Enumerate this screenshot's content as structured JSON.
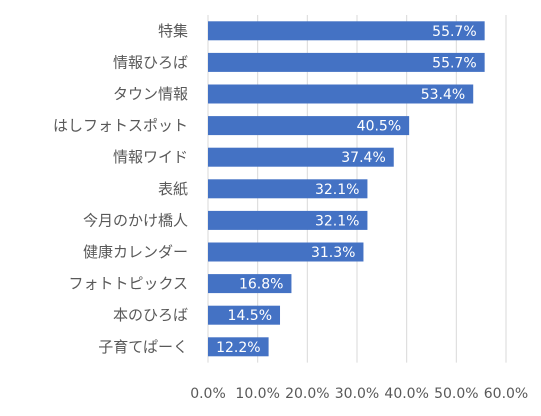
{
  "chart_data": {
    "type": "bar",
    "orientation": "horizontal",
    "title": "",
    "xlabel": "",
    "ylabel": "",
    "categories": [
      "特集",
      "情報ひろば",
      "タウン情報",
      "はしフォトスポット",
      "情報ワイド",
      "表紙",
      "今月のかけ橋人",
      "健康カレンダー",
      "フォトトピックス",
      "本のひろば",
      "子育てぱーく"
    ],
    "values": [
      55.7,
      55.7,
      53.4,
      40.5,
      37.4,
      32.1,
      32.1,
      31.3,
      16.8,
      14.5,
      12.2
    ],
    "data_labels": [
      "55.7%",
      "55.7%",
      "53.4%",
      "40.5%",
      "37.4%",
      "32.1%",
      "32.1%",
      "31.3%",
      "16.8%",
      "14.5%",
      "12.2%"
    ],
    "xlim": [
      0,
      60
    ],
    "x_ticks": [
      0,
      10,
      20,
      30,
      40,
      50,
      60
    ],
    "x_tick_labels": [
      "0.0%",
      "10.0%",
      "20.0%",
      "30.0%",
      "40.0%",
      "50.0%",
      "60.0%"
    ],
    "grid": "vertical",
    "legend": "none",
    "colors": {
      "bar": "#4472c4",
      "grid": "#d9d9d9",
      "text": "#595959",
      "data_label_text": "#ffffff"
    }
  }
}
